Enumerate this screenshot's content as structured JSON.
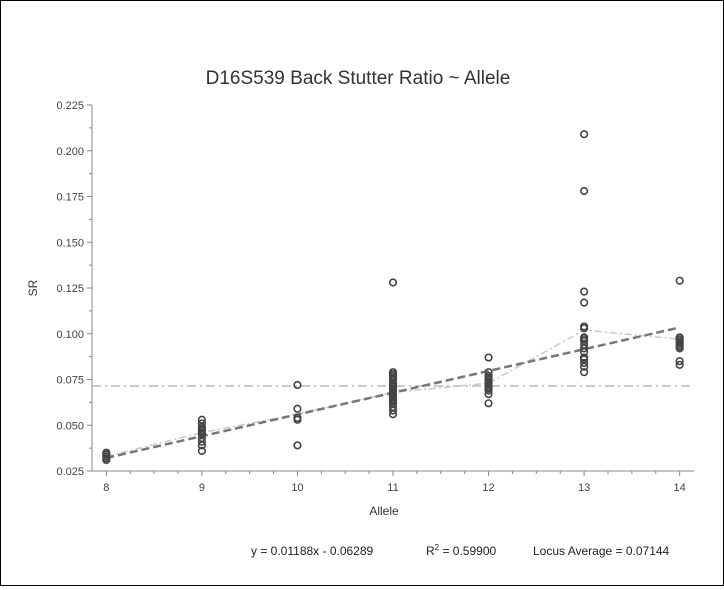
{
  "chart_data": {
    "type": "scatter",
    "title": "D16S539 Back Stutter Ratio ~ Allele",
    "xlabel": "Allele",
    "ylabel": "SR",
    "xlim": [
      7.85,
      14.15
    ],
    "ylim": [
      0.025,
      0.225
    ],
    "x_ticks": [
      8,
      9,
      10,
      11,
      12,
      13,
      14
    ],
    "y_ticks": [
      0.025,
      0.05,
      0.075,
      0.1,
      0.125,
      0.15,
      0.175,
      0.2,
      0.225
    ],
    "y_tick_labels": [
      "0.025",
      "0.050",
      "0.075",
      "0.100",
      "0.125",
      "0.150",
      "0.175",
      "0.200",
      "0.225"
    ],
    "points": [
      [
        8,
        0.031
      ],
      [
        8,
        0.032
      ],
      [
        8,
        0.033
      ],
      [
        8,
        0.034
      ],
      [
        8,
        0.035
      ],
      [
        9,
        0.036
      ],
      [
        9,
        0.039
      ],
      [
        9,
        0.041
      ],
      [
        9,
        0.043
      ],
      [
        9,
        0.045
      ],
      [
        9,
        0.046
      ],
      [
        9,
        0.047
      ],
      [
        9,
        0.048
      ],
      [
        9,
        0.049
      ],
      [
        9,
        0.051
      ],
      [
        9,
        0.053
      ],
      [
        10,
        0.039
      ],
      [
        10,
        0.053
      ],
      [
        10,
        0.054
      ],
      [
        10,
        0.059
      ],
      [
        10,
        0.072
      ],
      [
        11,
        0.056
      ],
      [
        11,
        0.058
      ],
      [
        11,
        0.06
      ],
      [
        11,
        0.062
      ],
      [
        11,
        0.063
      ],
      [
        11,
        0.064
      ],
      [
        11,
        0.065
      ],
      [
        11,
        0.066
      ],
      [
        11,
        0.067
      ],
      [
        11,
        0.068
      ],
      [
        11,
        0.069
      ],
      [
        11,
        0.07
      ],
      [
        11,
        0.071
      ],
      [
        11,
        0.072
      ],
      [
        11,
        0.073
      ],
      [
        11,
        0.075
      ],
      [
        11,
        0.076
      ],
      [
        11,
        0.077
      ],
      [
        11,
        0.078
      ],
      [
        11,
        0.079
      ],
      [
        11,
        0.128
      ],
      [
        12,
        0.062
      ],
      [
        12,
        0.067
      ],
      [
        12,
        0.069
      ],
      [
        12,
        0.07
      ],
      [
        12,
        0.071
      ],
      [
        12,
        0.072
      ],
      [
        12,
        0.073
      ],
      [
        12,
        0.074
      ],
      [
        12,
        0.075
      ],
      [
        12,
        0.076
      ],
      [
        12,
        0.077
      ],
      [
        12,
        0.079
      ],
      [
        12,
        0.087
      ],
      [
        13,
        0.079
      ],
      [
        13,
        0.082
      ],
      [
        13,
        0.084
      ],
      [
        13,
        0.086
      ],
      [
        13,
        0.087
      ],
      [
        13,
        0.09
      ],
      [
        13,
        0.092
      ],
      [
        13,
        0.094
      ],
      [
        13,
        0.096
      ],
      [
        13,
        0.097
      ],
      [
        13,
        0.098
      ],
      [
        13,
        0.103
      ],
      [
        13,
        0.104
      ],
      [
        13,
        0.117
      ],
      [
        13,
        0.123
      ],
      [
        13,
        0.178
      ],
      [
        13,
        0.209
      ],
      [
        14,
        0.083
      ],
      [
        14,
        0.085
      ],
      [
        14,
        0.092
      ],
      [
        14,
        0.093
      ],
      [
        14,
        0.094
      ],
      [
        14,
        0.095
      ],
      [
        14,
        0.096
      ],
      [
        14,
        0.097
      ],
      [
        14,
        0.098
      ],
      [
        14,
        0.129
      ]
    ],
    "regression": {
      "slope": 0.01188,
      "intercept": -0.06289
    },
    "locus_average": 0.07144,
    "means_by_allele": [
      [
        8,
        0.033
      ],
      [
        9,
        0.046
      ],
      [
        10,
        0.056
      ],
      [
        11,
        0.068
      ],
      [
        12,
        0.073
      ],
      [
        13,
        0.102
      ],
      [
        14,
        0.097
      ]
    ],
    "grid": false,
    "colors": {
      "points": "#444444",
      "regression": "#777777",
      "average": "#aaaaaa",
      "means": "#c8c8c8"
    }
  },
  "footer": {
    "equation": "y = 0.01188x - 0.06289",
    "r2_prefix": "R",
    "r2_sup": "2",
    "r2_value": " = 0.59900",
    "locus_average": "Locus Average = 0.07144"
  }
}
